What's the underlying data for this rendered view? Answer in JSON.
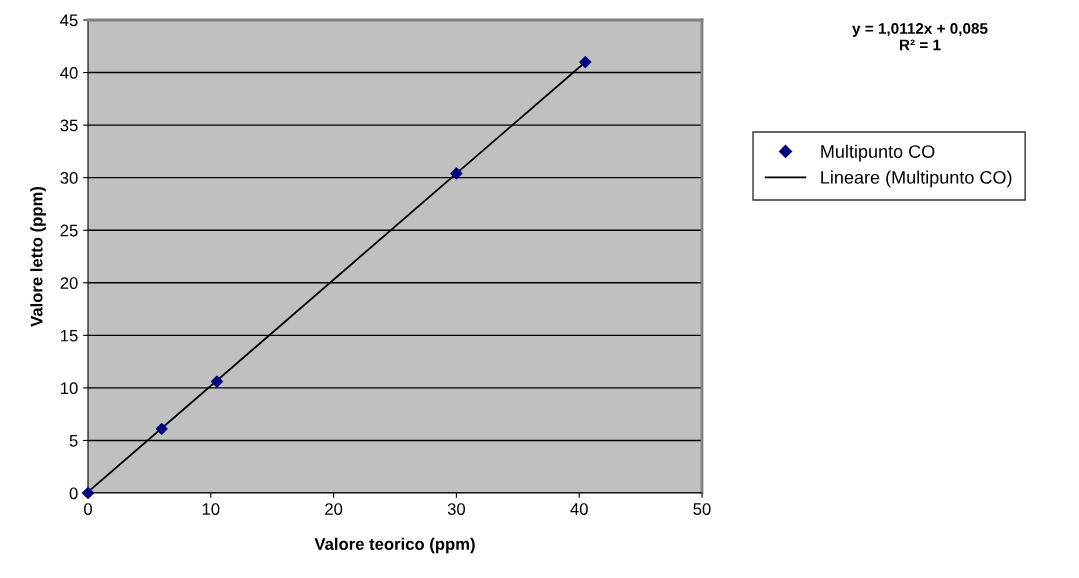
{
  "chart_data": {
    "type": "scatter",
    "xlabel": "Valore teorico (ppm)",
    "ylabel": "Valore letto (ppm)",
    "annotations": [
      "y = 1,0112x + 0,085\nR² = 1"
    ],
    "series": [
      {
        "name": "Multipunto CO",
        "color": "#000080",
        "marker": "diamond",
        "x": [
          0,
          6,
          10.5,
          30,
          40.5
        ],
        "values": [
          0,
          6.1,
          10.6,
          30.4,
          41
        ]
      },
      {
        "name": "Lineare (Multipunto CO)",
        "type": "line",
        "color": "#000000",
        "line_style": "solid",
        "x": [
          0,
          40.5
        ],
        "values": [
          0.1,
          41
        ]
      }
    ],
    "xlim": [
      0,
      50
    ],
    "xticks": [
      0,
      10,
      20,
      30,
      40,
      50
    ],
    "ylim": [
      0,
      45
    ],
    "yticks": [
      0,
      5,
      10,
      15,
      20,
      25,
      30,
      35,
      40,
      45
    ],
    "grid": "y",
    "legend": "right"
  }
}
